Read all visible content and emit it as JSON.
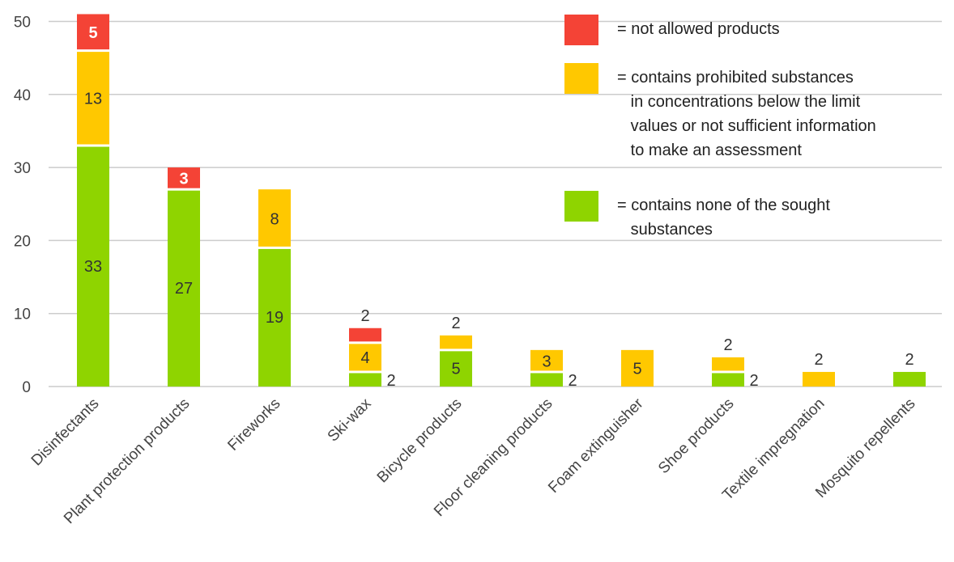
{
  "chart_data": {
    "type": "bar",
    "stacked": true,
    "categories": [
      "Disinfectants",
      "Plant protection products",
      "Fireworks",
      "Ski-wax",
      "Bicycle products",
      "Floor cleaning products",
      "Foam extinguisher",
      "Shoe products",
      "Textile impregnation",
      "Mosquito repellents"
    ],
    "series": [
      {
        "name": "= contains none of the sought\n   substances",
        "color": "#8fd400",
        "values": [
          33,
          27,
          19,
          2,
          5,
          2,
          0,
          2,
          0,
          2
        ]
      },
      {
        "name": "= contains prohibited substances\n   in concentrations below the limit\n   values or not sufficient information\n   to make an assessment",
        "color": "#ffc800",
        "values": [
          13,
          0,
          8,
          4,
          2,
          3,
          5,
          2,
          2,
          0
        ]
      },
      {
        "name": "= not allowed products",
        "color": "#f44336",
        "values": [
          5,
          3,
          0,
          2,
          0,
          0,
          0,
          0,
          0,
          0
        ]
      }
    ],
    "data_labels": [
      [
        "33",
        "27",
        "19",
        "2",
        "5",
        "2",
        "",
        "2",
        "",
        "2"
      ],
      [
        "13",
        "",
        "8",
        "4",
        "2",
        "3",
        "5",
        "2",
        "2",
        ""
      ],
      [
        "5",
        "3",
        "",
        "2",
        "",
        "",
        "",
        "",
        "",
        ""
      ]
    ],
    "yticks": [
      0,
      10,
      20,
      30,
      40,
      50
    ],
    "ylim": [
      0,
      51
    ],
    "grid": true,
    "legend_position": "top-right",
    "title": "",
    "xlabel": "",
    "ylabel": ""
  }
}
